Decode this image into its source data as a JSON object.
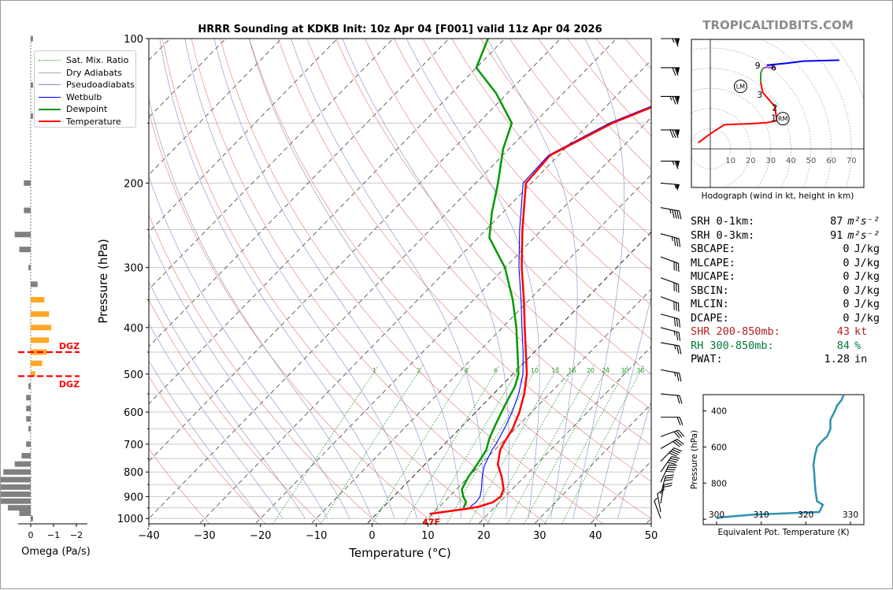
{
  "site": {
    "watermark": "TROPICALTIDBITS.COM"
  },
  "chart_data": [
    {
      "type": "skew-t",
      "title": "HRRR Sounding at KDKB Init: 10z Apr 04 [F001] valid 11z Apr 04 2026",
      "xlabel": "Temperature (°C)",
      "ylabel": "Pressure (hPa)",
      "xlim": [
        -40,
        50
      ],
      "ylim": [
        1050,
        100
      ],
      "y_scale": "log",
      "x_ticks": [
        "−40",
        "−30",
        "−20",
        "−10",
        "0",
        "10",
        "20",
        "30",
        "40",
        "50"
      ],
      "y_ticks": [
        "100",
        "200",
        "300",
        "400",
        "500",
        "600",
        "700",
        "800",
        "900",
        "1000"
      ],
      "legend_position": "top-left",
      "legend": [
        {
          "label": "Sat. Mix. Ratio",
          "color": "#2ca02c",
          "style": "dotted"
        },
        {
          "label": "Dry Adiabats",
          "color": "#aaaaaa",
          "style": "solid"
        },
        {
          "label": "Pseudoadiabats",
          "color": "#8888cc",
          "style": "solid"
        },
        {
          "label": "Wetbulb",
          "color": "#0000ff",
          "style": "solid"
        },
        {
          "label": "Dewpoint",
          "color": "#009900",
          "style": "solid"
        },
        {
          "label": "Temperature",
          "color": "#ff0000",
          "style": "solid"
        }
      ],
      "mixing_ratio_labels": [
        "1",
        "2",
        "4",
        "6",
        "8",
        "10",
        "13",
        "16",
        "20",
        "24",
        "30",
        "36"
      ],
      "surface_temp_label": "47F",
      "temperature": [
        [
          978,
          9.5
        ],
        [
          955,
          15
        ],
        [
          945,
          17
        ],
        [
          925,
          18.8
        ],
        [
          900,
          19.2
        ],
        [
          870,
          18.5
        ],
        [
          820,
          16
        ],
        [
          770,
          13
        ],
        [
          720,
          11
        ],
        [
          700,
          10.5
        ],
        [
          650,
          9.5
        ],
        [
          600,
          7.8
        ],
        [
          550,
          5.5
        ],
        [
          500,
          2.5
        ],
        [
          450,
          -1.5
        ],
        [
          400,
          -6
        ],
        [
          350,
          -11
        ],
        [
          300,
          -17
        ],
        [
          250,
          -23.5
        ],
        [
          200,
          -31
        ],
        [
          175,
          -31.5
        ],
        [
          150,
          -26
        ],
        [
          130,
          -18
        ],
        [
          110,
          -8
        ],
        [
          100,
          -3
        ]
      ],
      "dewpoint": [
        [
          950,
          14.5
        ],
        [
          925,
          14
        ],
        [
          900,
          12.5
        ],
        [
          870,
          11
        ],
        [
          820,
          10
        ],
        [
          780,
          9.5
        ],
        [
          720,
          8.5
        ],
        [
          680,
          7
        ],
        [
          630,
          5.5
        ],
        [
          580,
          4
        ],
        [
          530,
          2.5
        ],
        [
          500,
          1
        ],
        [
          450,
          -3
        ],
        [
          400,
          -7.5
        ],
        [
          350,
          -13
        ],
        [
          300,
          -20
        ],
        [
          260,
          -28
        ],
        [
          230,
          -32
        ],
        [
          200,
          -36
        ],
        [
          170,
          -41
        ],
        [
          150,
          -44
        ],
        [
          130,
          -52
        ],
        [
          115,
          -60
        ],
        [
          100,
          -63
        ]
      ],
      "wetbulb": [
        [
          945,
          15.5
        ],
        [
          925,
          15.8
        ],
        [
          900,
          15.5
        ],
        [
          870,
          14.5
        ],
        [
          820,
          12.5
        ],
        [
          780,
          11
        ],
        [
          720,
          9.5
        ],
        [
          700,
          9.2
        ],
        [
          650,
          8
        ],
        [
          600,
          6.5
        ],
        [
          550,
          4.5
        ],
        [
          500,
          1.8
        ],
        [
          450,
          -2
        ],
        [
          400,
          -6.5
        ],
        [
          350,
          -11.5
        ],
        [
          300,
          -17.5
        ],
        [
          250,
          -24
        ],
        [
          200,
          -31.5
        ],
        [
          175,
          -31.8
        ],
        [
          150,
          -26.5
        ],
        [
          130,
          -18.5
        ],
        [
          110,
          -8.5
        ],
        [
          100,
          -3.5
        ]
      ],
      "wind_barbs": [
        [
          100,
          270,
          65
        ],
        [
          115,
          270,
          70
        ],
        [
          132,
          270,
          75
        ],
        [
          155,
          270,
          80
        ],
        [
          180,
          270,
          65
        ],
        [
          200,
          275,
          55
        ],
        [
          225,
          280,
          45
        ],
        [
          255,
          285,
          35
        ],
        [
          285,
          290,
          32
        ],
        [
          315,
          290,
          30
        ],
        [
          345,
          290,
          30
        ],
        [
          375,
          285,
          28
        ],
        [
          400,
          285,
          25
        ],
        [
          430,
          280,
          25
        ],
        [
          490,
          280,
          25
        ],
        [
          550,
          275,
          22
        ],
        [
          615,
          270,
          22
        ],
        [
          675,
          250,
          28
        ],
        [
          715,
          240,
          32
        ],
        [
          760,
          225,
          38
        ],
        [
          800,
          215,
          40
        ],
        [
          840,
          205,
          38
        ],
        [
          890,
          195,
          30
        ],
        [
          930,
          190,
          22
        ],
        [
          970,
          170,
          12
        ],
        [
          1000,
          160,
          6
        ]
      ]
    },
    {
      "type": "bar",
      "xlabel": "Omega (Pa/s)",
      "x_ticks": [
        "0",
        "−1",
        "−2"
      ],
      "dgz_label": "DGZ",
      "dgz_pressures": [
        450,
        505
      ],
      "bars": [
        [
          100,
          -0.1
        ],
        [
          125,
          -0.1
        ],
        [
          145,
          -0.1
        ],
        [
          200,
          0.3
        ],
        [
          228,
          0.3
        ],
        [
          256,
          0.7
        ],
        [
          275,
          0.5
        ],
        [
          300,
          0.1
        ],
        [
          325,
          -0.3
        ],
        [
          350,
          -0.6
        ],
        [
          375,
          -0.8
        ],
        [
          400,
          -0.9
        ],
        [
          425,
          -0.8
        ],
        [
          450,
          -0.7
        ],
        [
          475,
          -0.5
        ],
        [
          500,
          -0.2
        ],
        [
          530,
          0.1
        ],
        [
          560,
          0.2
        ],
        [
          590,
          0.2
        ],
        [
          620,
          0.2
        ],
        [
          650,
          0.1
        ],
        [
          700,
          0.2
        ],
        [
          740,
          0.4
        ],
        [
          770,
          0.7
        ],
        [
          800,
          1.2
        ],
        [
          830,
          1.4
        ],
        [
          860,
          1.5
        ],
        [
          890,
          1.5
        ],
        [
          920,
          1.4
        ],
        [
          950,
          1.0
        ],
        [
          975,
          0.5
        ],
        [
          1000,
          -0.1
        ]
      ]
    },
    {
      "type": "line",
      "title": "Hodograph (wind in kt, height in km)",
      "x_ticks": [
        "10",
        "20",
        "30",
        "40",
        "50",
        "60",
        "70"
      ],
      "height_labels": [
        "1",
        "2",
        "3",
        "6",
        "9"
      ],
      "marker_labels": [
        "LM",
        "RM"
      ],
      "segments": [
        {
          "color": "#ff0000",
          "points": [
            [
              -6,
              3
            ],
            [
              0,
              7.5
            ],
            [
              7,
              12
            ],
            [
              20,
              12.5
            ],
            [
              28,
              13
            ],
            [
              33,
              14
            ]
          ]
        },
        {
          "color": "#ff0000",
          "points": [
            [
              33,
              14
            ],
            [
              32,
              21
            ],
            [
              26,
              28
            ],
            [
              25,
              33
            ]
          ]
        },
        {
          "color": "#339933",
          "points": [
            [
              25,
              33
            ],
            [
              25,
              37.5
            ],
            [
              26,
              40
            ]
          ]
        },
        {
          "color": "#a14da1",
          "points": [
            [
              26,
              40
            ],
            [
              28,
              40.5
            ],
            [
              32,
              40
            ],
            [
              31.5,
              41.5
            ],
            [
              28,
              41.5
            ]
          ]
        },
        {
          "color": "#0000ff",
          "points": [
            [
              28,
              41.5
            ],
            [
              38,
              42.5
            ],
            [
              46,
              43.5
            ],
            [
              64,
              44
            ]
          ]
        }
      ],
      "label_points": [
        [
          31.5,
          15.5
        ],
        [
          32,
          20.5
        ],
        [
          24.5,
          27
        ],
        [
          31.5,
          40.5
        ],
        [
          23.5,
          41.5
        ]
      ],
      "storm_motion": {
        "lm": [
          15,
          31
        ],
        "rm": [
          36,
          15
        ]
      }
    },
    {
      "type": "line",
      "xlabel": "Equivalent Pot. Temperature (K)",
      "ylabel": "Pressure (hPa)",
      "xlim": [
        297,
        333
      ],
      "ylim": [
        1030,
        310
      ],
      "x_ticks": [
        "300",
        "310",
        "320",
        "330"
      ],
      "y_ticks": [
        "400",
        "600",
        "800"
      ],
      "color": "#2e91b0",
      "points": [
        [
          310,
          328.5
        ],
        [
          340,
          328
        ],
        [
          370,
          327
        ],
        [
          400,
          326.5
        ],
        [
          450,
          325.5
        ],
        [
          500,
          325.5
        ],
        [
          540,
          324.8
        ],
        [
          570,
          323.5
        ],
        [
          600,
          322.5
        ],
        [
          650,
          322
        ],
        [
          700,
          321.7
        ],
        [
          750,
          321.9
        ],
        [
          800,
          322
        ],
        [
          850,
          322.2
        ],
        [
          900,
          322.5
        ],
        [
          920,
          323.8
        ],
        [
          960,
          323
        ],
        [
          975,
          308
        ],
        [
          990,
          301
        ],
        [
          995,
          300
        ]
      ]
    }
  ],
  "params": [
    {
      "k": "SRH 0-1km:",
      "v": "87",
      "u": "m²s⁻²",
      "color": "#000000"
    },
    {
      "k": "SRH 0-3km:",
      "v": "91",
      "u": "m²s⁻²",
      "color": "#000000"
    },
    {
      "k": "SBCAPE:",
      "v": "0",
      "u": "J/kg",
      "color": "#000000"
    },
    {
      "k": "MLCAPE:",
      "v": "0",
      "u": "J/kg",
      "color": "#000000"
    },
    {
      "k": "MUCAPE:",
      "v": "0",
      "u": "J/kg",
      "color": "#000000"
    },
    {
      "k": "SBCIN:",
      "v": "0",
      "u": "J/kg",
      "color": "#000000"
    },
    {
      "k": "MLCIN:",
      "v": "0",
      "u": "J/kg",
      "color": "#000000"
    },
    {
      "k": "DCAPE:",
      "v": "0",
      "u": "J/kg",
      "color": "#000000"
    },
    {
      "k": "SHR 200-850mb:",
      "v": "43",
      "u": "kt",
      "color": "#b22222"
    },
    {
      "k": "RH 300-850mb:",
      "v": "84",
      "u": "%",
      "color": "#007a3d"
    },
    {
      "k": "PWAT:",
      "v": "1.28",
      "u": "in",
      "color": "#000000"
    }
  ]
}
